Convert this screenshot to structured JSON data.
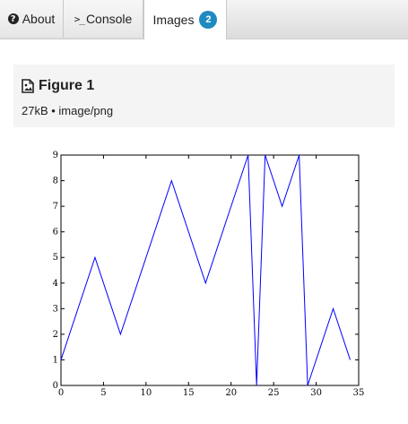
{
  "tabs": {
    "about": "About",
    "console": "Console",
    "console_prefix": ">_",
    "images": "Images",
    "images_count": "2",
    "help_glyph": "?"
  },
  "panel": {
    "title": "Figure 1",
    "meta": "27kB • image/png"
  },
  "chart_data": {
    "type": "line",
    "title": "",
    "xlabel": "",
    "ylabel": "",
    "xlim": [
      0,
      35
    ],
    "ylim": [
      0,
      9
    ],
    "grid": false,
    "line_color": "#0000ff",
    "x_ticks": [
      0,
      5,
      10,
      15,
      20,
      25,
      30,
      35
    ],
    "y_ticks": [
      0,
      1,
      2,
      3,
      4,
      5,
      6,
      7,
      8,
      9
    ],
    "x": [
      0,
      4,
      7,
      13,
      17,
      22,
      23,
      24,
      26,
      28,
      29,
      32,
      34
    ],
    "y": [
      1,
      5,
      2,
      8,
      4,
      9,
      0,
      9,
      7,
      9,
      0,
      3,
      1
    ]
  },
  "colors": {
    "badge": "#1f8ac0",
    "panel_bg": "#f4f4f4",
    "line": "#0000ff"
  },
  "icons": {
    "about": "question-circle-icon",
    "console": "terminal-icon",
    "panel": "image-file-icon"
  }
}
